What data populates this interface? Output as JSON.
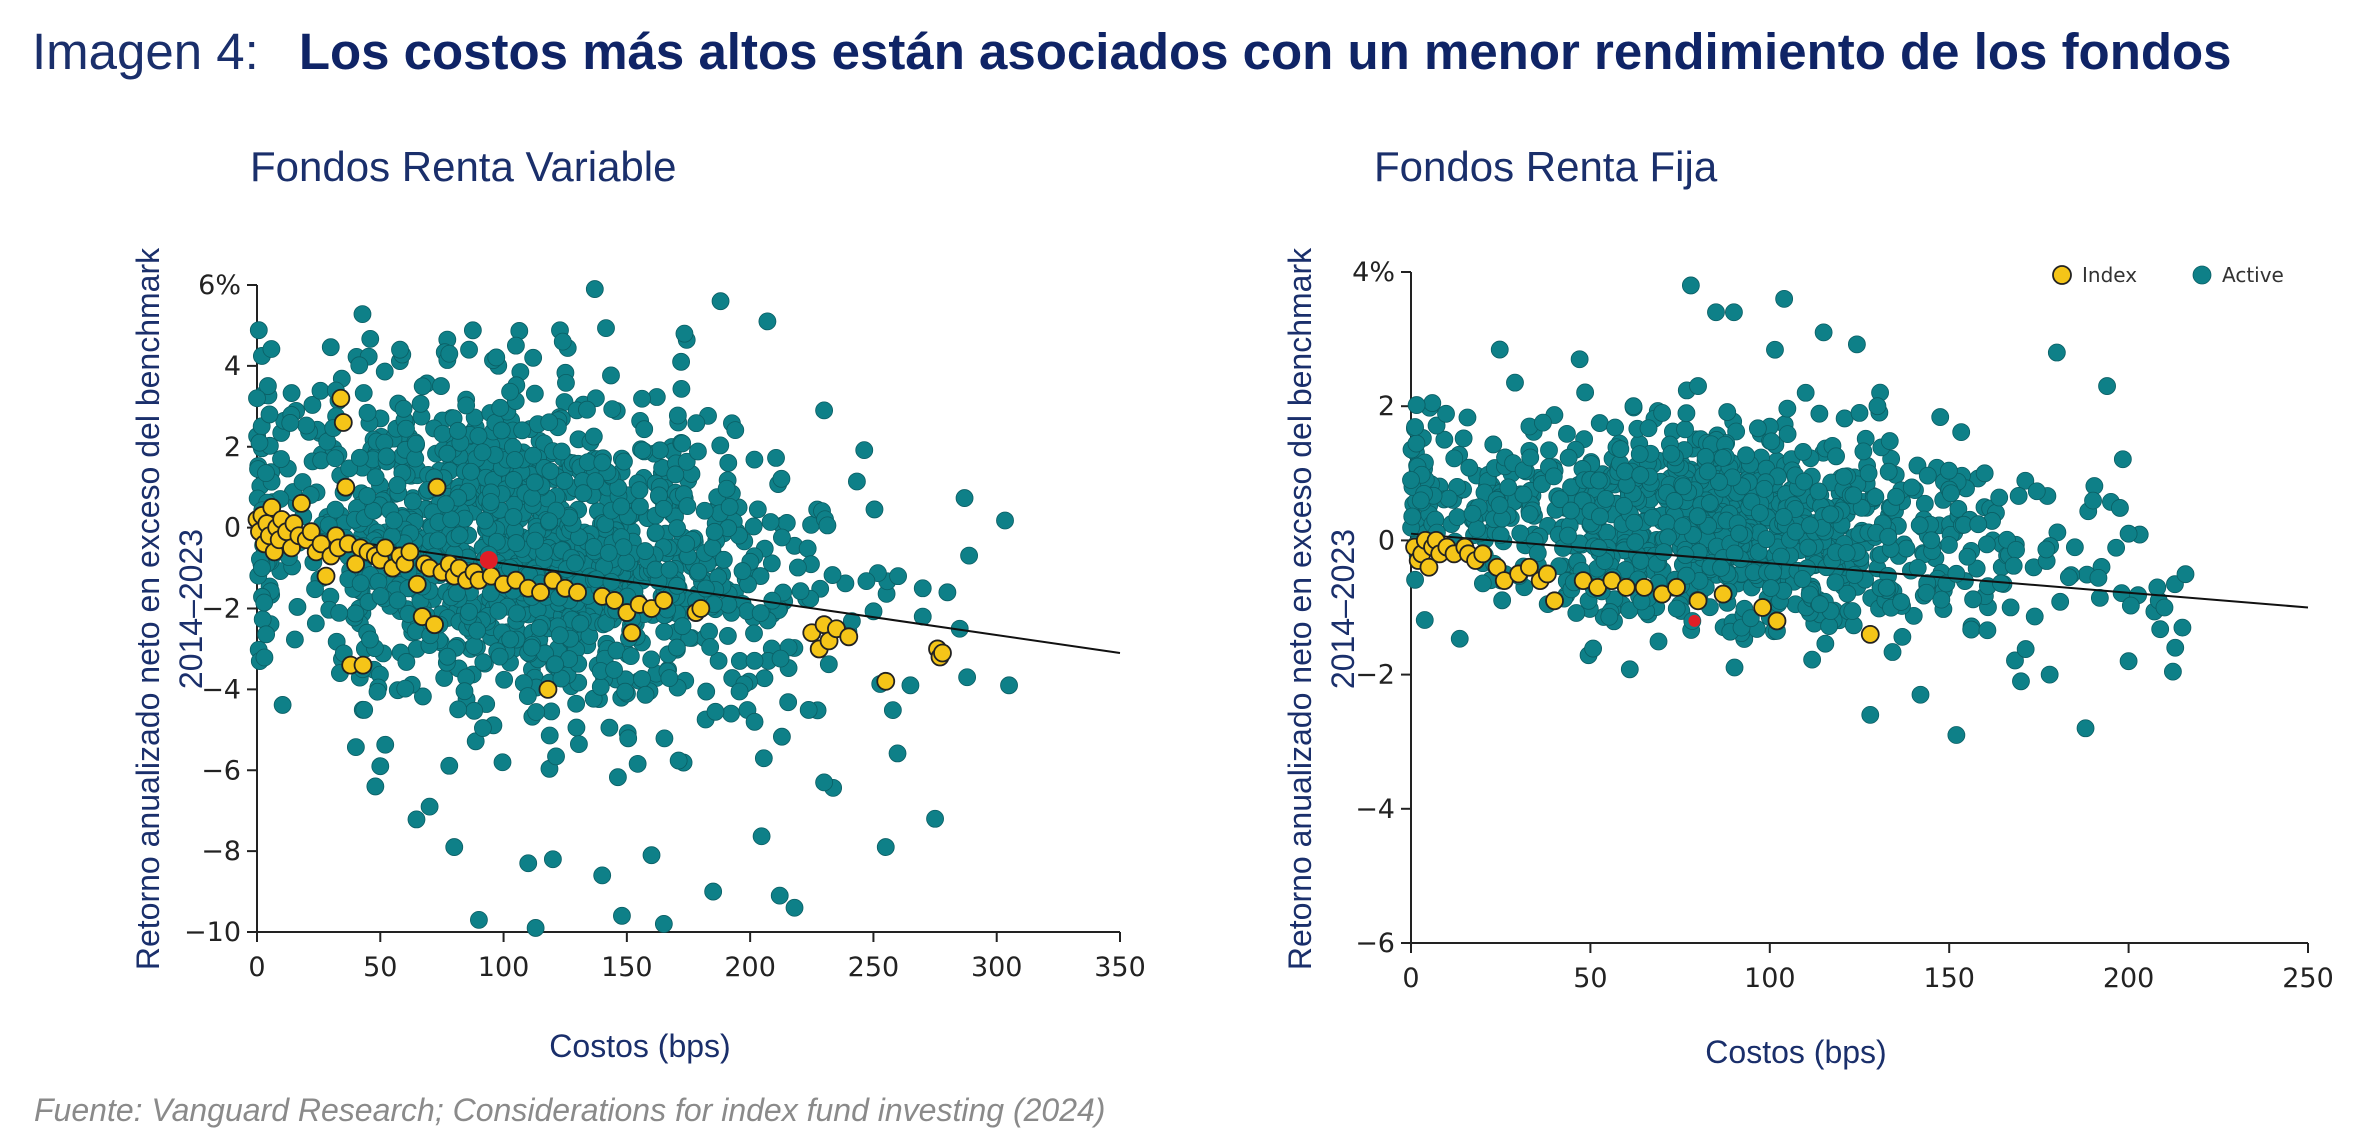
{
  "header": {
    "label": "Imagen 4:",
    "title": "Los costos más altos están asociados con un menor rendimiento de los fondos"
  },
  "source": "Fuente: Vanguard Research; Considerations for index fund investing (2024)",
  "colors": {
    "active": "#0e8088",
    "index": "#f5c518",
    "highlight": "#e01e26",
    "trend": "#111111",
    "text": "#1a2f6b"
  },
  "chart_data": [
    {
      "type": "scatter",
      "title": "Fondos Renta Variable",
      "ylabel_line1": "Retorno anualizado neto en exceso del benchmark",
      "ylabel_line2": "2014–2023",
      "xlabel": "Costos (bps)",
      "xlim": [
        0,
        350
      ],
      "ylim": [
        -10,
        6
      ],
      "xticks": [
        "0",
        "50",
        "100",
        "150",
        "200",
        "250",
        "300",
        "350"
      ],
      "yticks": [
        "6%",
        "4",
        "2",
        "0",
        "−2",
        "−4",
        "−6",
        "−8",
        "−10"
      ],
      "trend": {
        "x": [
          0,
          350
        ],
        "y": [
          0.0,
          -3.1
        ]
      },
      "highlight": {
        "x": 94,
        "y": -0.8
      },
      "index_points": [
        [
          0,
          0.2
        ],
        [
          1,
          -0.1
        ],
        [
          2,
          0.3
        ],
        [
          3,
          -0.4
        ],
        [
          4,
          0.1
        ],
        [
          5,
          -0.2
        ],
        [
          6,
          0.5
        ],
        [
          7,
          -0.6
        ],
        [
          8,
          0.0
        ],
        [
          9,
          -0.3
        ],
        [
          10,
          0.2
        ],
        [
          12,
          -0.1
        ],
        [
          14,
          -0.5
        ],
        [
          15,
          0.1
        ],
        [
          17,
          -0.2
        ],
        [
          18,
          0.6
        ],
        [
          20,
          -0.3
        ],
        [
          22,
          -0.1
        ],
        [
          24,
          -0.6
        ],
        [
          26,
          -0.4
        ],
        [
          28,
          -1.2
        ],
        [
          30,
          -0.7
        ],
        [
          32,
          -0.2
        ],
        [
          33,
          -0.5
        ],
        [
          34,
          3.2
        ],
        [
          35,
          2.6
        ],
        [
          36,
          1.0
        ],
        [
          37,
          -0.4
        ],
        [
          38,
          -3.4
        ],
        [
          40,
          -0.9
        ],
        [
          42,
          -0.5
        ],
        [
          43,
          -3.4
        ],
        [
          45,
          -0.6
        ],
        [
          48,
          -0.7
        ],
        [
          50,
          -0.8
        ],
        [
          52,
          -0.5
        ],
        [
          55,
          -1.0
        ],
        [
          58,
          -0.7
        ],
        [
          60,
          -0.9
        ],
        [
          62,
          -0.6
        ],
        [
          65,
          -1.4
        ],
        [
          67,
          -2.2
        ],
        [
          68,
          -0.9
        ],
        [
          70,
          -1.0
        ],
        [
          72,
          -2.4
        ],
        [
          73,
          1.0
        ],
        [
          75,
          -1.1
        ],
        [
          78,
          -0.9
        ],
        [
          80,
          -1.2
        ],
        [
          82,
          -1.0
        ],
        [
          85,
          -1.3
        ],
        [
          88,
          -1.1
        ],
        [
          90,
          -1.3
        ],
        [
          95,
          -1.2
        ],
        [
          100,
          -1.4
        ],
        [
          105,
          -1.3
        ],
        [
          110,
          -1.5
        ],
        [
          115,
          -1.6
        ],
        [
          118,
          -4.0
        ],
        [
          120,
          -1.3
        ],
        [
          125,
          -1.5
        ],
        [
          130,
          -1.6
        ],
        [
          140,
          -1.7
        ],
        [
          145,
          -1.8
        ],
        [
          150,
          -2.1
        ],
        [
          152,
          -2.6
        ],
        [
          155,
          -1.9
        ],
        [
          160,
          -2.0
        ],
        [
          165,
          -1.8
        ],
        [
          178,
          -2.1
        ],
        [
          180,
          -2.0
        ],
        [
          225,
          -2.6
        ],
        [
          228,
          -3.0
        ],
        [
          230,
          -2.4
        ],
        [
          232,
          -2.8
        ],
        [
          235,
          -2.5
        ],
        [
          240,
          -2.7
        ],
        [
          255,
          -3.8
        ],
        [
          276,
          -3.0
        ],
        [
          277,
          -3.2
        ],
        [
          278,
          -3.1
        ]
      ],
      "active_cloud": {
        "x_center": 110,
        "x_spread": 55,
        "y_center": -1.0,
        "y_spread": 1.9,
        "count": 1400
      },
      "active_outliers": [
        [
          0,
          3.2
        ],
        [
          1,
          2.1
        ],
        [
          2,
          -1.0
        ],
        [
          58,
          4.4
        ],
        [
          78,
          4.3
        ],
        [
          86,
          4.4
        ],
        [
          105,
          4.5
        ],
        [
          112,
          4.2
        ],
        [
          124,
          4.6
        ],
        [
          137,
          5.9
        ],
        [
          172,
          4.1
        ],
        [
          188,
          5.6
        ],
        [
          207,
          5.1
        ],
        [
          230,
          2.9
        ],
        [
          260,
          -1.2
        ],
        [
          270,
          -1.5
        ],
        [
          280,
          -1.6
        ],
        [
          285,
          -2.5
        ],
        [
          288,
          -3.7
        ],
        [
          305,
          -3.9
        ],
        [
          265,
          -3.9
        ],
        [
          270,
          -2.2
        ],
        [
          255,
          -7.9
        ],
        [
          275,
          -7.2
        ],
        [
          230,
          -6.3
        ],
        [
          212,
          -9.1
        ],
        [
          218,
          -9.4
        ],
        [
          185,
          -9.0
        ],
        [
          165,
          -9.8
        ],
        [
          148,
          -9.6
        ],
        [
          113,
          -9.9
        ],
        [
          90,
          -9.7
        ],
        [
          50,
          -5.9
        ],
        [
          48,
          -6.4
        ],
        [
          70,
          -6.9
        ],
        [
          80,
          -7.9
        ],
        [
          110,
          -8.3
        ],
        [
          120,
          -8.2
        ],
        [
          140,
          -8.6
        ],
        [
          160,
          -8.1
        ]
      ]
    },
    {
      "type": "scatter",
      "title": "Fondos Renta Fija",
      "ylabel_line1": "Retorno anualizado neto en exceso del benchmark",
      "ylabel_line2": "2014–2023",
      "xlabel": "Costos (bps)",
      "xlim": [
        0,
        250
      ],
      "ylim": [
        -6,
        4
      ],
      "xticks": [
        "0",
        "50",
        "100",
        "150",
        "200",
        "250"
      ],
      "yticks": [
        "4%",
        "2",
        "0",
        "−2",
        "−4",
        "−6"
      ],
      "legend": {
        "position": "top-right",
        "items": [
          "Index",
          "Active"
        ]
      },
      "trend": {
        "x": [
          0,
          250
        ],
        "y": [
          0.1,
          -1.0
        ]
      },
      "highlight": {
        "x": 79,
        "y": -1.2
      },
      "index_points": [
        [
          1,
          -0.1
        ],
        [
          2,
          -0.3
        ],
        [
          3,
          -0.2
        ],
        [
          4,
          0.0
        ],
        [
          5,
          -0.4
        ],
        [
          6,
          -0.1
        ],
        [
          7,
          0.0
        ],
        [
          8,
          -0.2
        ],
        [
          10,
          -0.1
        ],
        [
          12,
          -0.2
        ],
        [
          15,
          -0.1
        ],
        [
          16,
          -0.2
        ],
        [
          18,
          -0.3
        ],
        [
          20,
          -0.2
        ],
        [
          24,
          -0.4
        ],
        [
          26,
          -0.6
        ],
        [
          30,
          -0.5
        ],
        [
          33,
          -0.4
        ],
        [
          36,
          -0.6
        ],
        [
          38,
          -0.5
        ],
        [
          40,
          -0.9
        ],
        [
          48,
          -0.6
        ],
        [
          52,
          -0.7
        ],
        [
          56,
          -0.6
        ],
        [
          60,
          -0.7
        ],
        [
          65,
          -0.7
        ],
        [
          70,
          -0.8
        ],
        [
          74,
          -0.7
        ],
        [
          80,
          -0.9
        ],
        [
          87,
          -0.8
        ],
        [
          98,
          -1.0
        ],
        [
          102,
          -1.2
        ],
        [
          128,
          -1.4
        ]
      ],
      "active_cloud": {
        "x_center": 85,
        "x_spread": 45,
        "y_center": -0.3,
        "y_spread": 0.75,
        "count": 1100
      },
      "active_outliers": [
        [
          0,
          0.9
        ],
        [
          47,
          2.7
        ],
        [
          62,
          2.0
        ],
        [
          70,
          1.9
        ],
        [
          80,
          2.3
        ],
        [
          78,
          3.8
        ],
        [
          85,
          3.4
        ],
        [
          90,
          3.4
        ],
        [
          104,
          3.6
        ],
        [
          110,
          2.2
        ],
        [
          115,
          3.1
        ],
        [
          125,
          1.9
        ],
        [
          130,
          2.0
        ],
        [
          180,
          2.8
        ],
        [
          194,
          2.3
        ],
        [
          200,
          0.1
        ],
        [
          208,
          -0.7
        ],
        [
          210,
          -1.0
        ],
        [
          213,
          -1.6
        ],
        [
          215,
          -1.3
        ],
        [
          200,
          -1.8
        ],
        [
          188,
          -2.8
        ],
        [
          170,
          -2.1
        ],
        [
          152,
          -2.9
        ],
        [
          128,
          -2.6
        ],
        [
          142,
          -2.3
        ],
        [
          178,
          -2.0
        ]
      ]
    }
  ]
}
